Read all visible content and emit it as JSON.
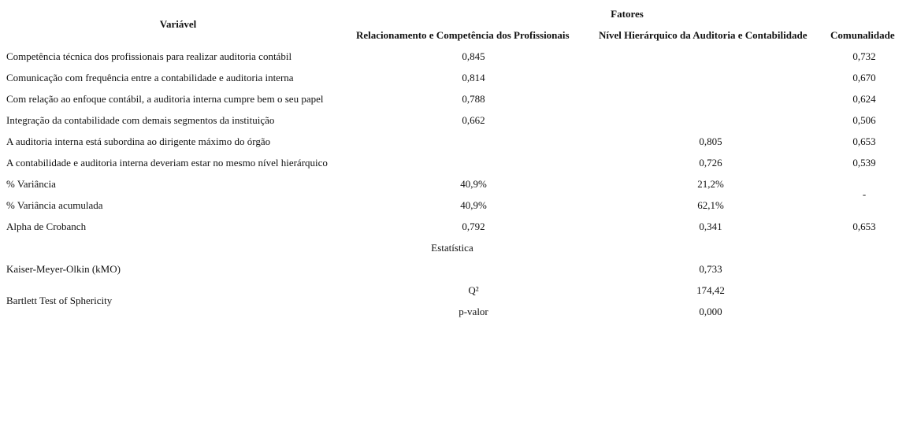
{
  "header": {
    "variavel": "Variável",
    "fatores": "Fatores",
    "col1": "Relacionamento e Competência dos Profissionais",
    "col2": "Nível Hierárquico da Auditoria e Contabilidade",
    "col3": "Comunalidade"
  },
  "rows": [
    {
      "label": "Competência técnica dos profissionais para realizar auditoria contábil",
      "f1": "0,845",
      "f2": "",
      "com": "0,732"
    },
    {
      "label": "Comunicação com frequência entre a contabilidade e auditoria interna",
      "f1": "0,814",
      "f2": "",
      "com": "0,670"
    },
    {
      "label": "Com relação ao enfoque contábil, a auditoria interna cumpre bem o seu papel",
      "f1": "0,788",
      "f2": "",
      "com": "0,624"
    },
    {
      "label": "Integração da contabilidade com demais segmentos da instituição",
      "f1": "0,662",
      "f2": "",
      "com": "0,506"
    },
    {
      "label": "A auditoria interna está subordina ao dirigente máximo do órgão",
      "f1": "",
      "f2": "0,805",
      "com": "0,653"
    },
    {
      "label": "A contabilidade e auditoria interna deveriam estar no mesmo nível hierárquico",
      "f1": "",
      "f2": "0,726",
      "com": "0,539"
    }
  ],
  "variance": {
    "label": "% Variância",
    "f1": "40,9%",
    "f2": "21,2%"
  },
  "cumulative": {
    "label": "% Variância acumulada",
    "f1": "40,9%",
    "f2": "62,1%"
  },
  "variance_com": "-",
  "alpha": {
    "label": "Alpha de Crobanch",
    "f1": "0,792",
    "f2": "0,341",
    "com": "0,653"
  },
  "estatistica": "Estatística",
  "kmo": {
    "label": "Kaiser-Meyer-Olkin (kMO)",
    "value": "0,733"
  },
  "bartlett": {
    "label": "Bartlett Test of Sphericity",
    "q_label": "Q²",
    "q_value": "174,42",
    "p_label": "p-valor",
    "p_value": "0,000"
  }
}
